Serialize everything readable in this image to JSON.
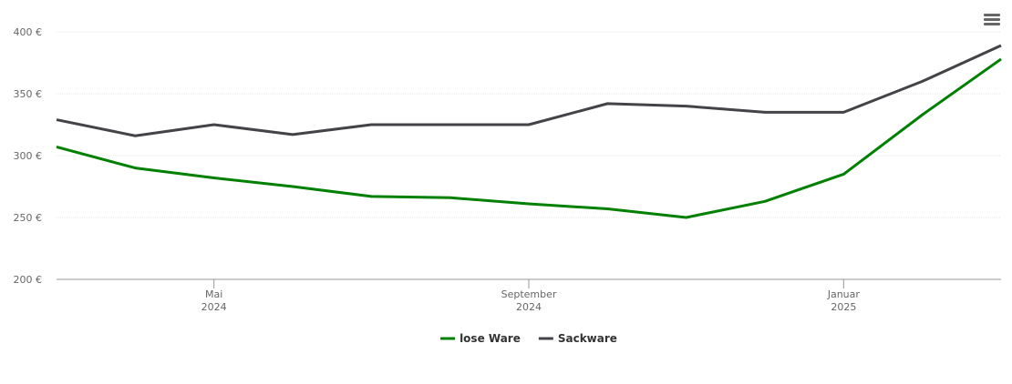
{
  "chart_data": {
    "type": "line",
    "x": [
      "2024-03",
      "2024-04",
      "2024-05",
      "2024-06",
      "2024-07",
      "2024-08",
      "2024-09",
      "2024-10",
      "2024-11",
      "2024-12",
      "2025-01",
      "2025-02",
      "2025-03"
    ],
    "series": [
      {
        "name": "lose Ware",
        "color": "#008000",
        "values": [
          307,
          290,
          282,
          275,
          267,
          266,
          261,
          257,
          250,
          263,
          285,
          333,
          378
        ]
      },
      {
        "name": "Sackware",
        "color": "#434348",
        "values": [
          329,
          316,
          325,
          317,
          325,
          325,
          325,
          342,
          340,
          335,
          335,
          360,
          389
        ]
      }
    ],
    "xlim": [
      "2024-03",
      "2025-03"
    ],
    "xticks": [
      {
        "value": "2024-05",
        "label": "Mai\n2024"
      },
      {
        "value": "2024-09",
        "label": "September\n2024"
      },
      {
        "value": "2025-01",
        "label": "Januar\n2025"
      }
    ],
    "ylim": [
      200,
      400
    ],
    "yticks": [
      {
        "value": 200,
        "label": "200 €"
      },
      {
        "value": 250,
        "label": "250 €"
      },
      {
        "value": 300,
        "label": "300 €"
      },
      {
        "value": 350,
        "label": "350 €"
      },
      {
        "value": 400,
        "label": "400 €"
      }
    ],
    "grid": true,
    "legend": "bottom"
  }
}
